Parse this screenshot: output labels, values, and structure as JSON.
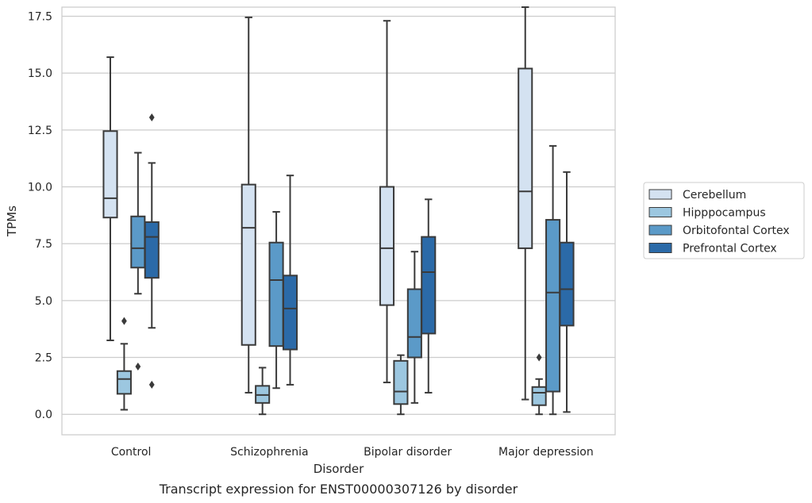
{
  "chart_data": {
    "type": "boxplot",
    "title": "",
    "caption": "Transcript expression for ENST00000307126 by disorder",
    "xlabel": "Disorder",
    "ylabel": "TPMs",
    "ylim": [
      -0.9,
      17.9
    ],
    "yticks": [
      0.0,
      2.5,
      5.0,
      7.5,
      10.0,
      12.5,
      15.0,
      17.5
    ],
    "ytick_labels": [
      "0.0",
      "2.5",
      "5.0",
      "7.5",
      "10.0",
      "12.5",
      "15.0",
      "17.5"
    ],
    "grid": true,
    "legend_position": "right",
    "categories": [
      "Control",
      "Schizophrenia",
      "Bipolar disorder",
      "Major depression"
    ],
    "series": [
      {
        "name": "Cerebellum",
        "color": "#d4e2f1",
        "boxes": [
          {
            "whislo": 3.25,
            "q1": 8.65,
            "med": 9.5,
            "q3": 12.45,
            "whishi": 15.7,
            "fliers": []
          },
          {
            "whislo": 0.95,
            "q1": 3.05,
            "med": 8.2,
            "q3": 10.1,
            "whishi": 17.45,
            "fliers": []
          },
          {
            "whislo": 1.4,
            "q1": 4.8,
            "med": 7.3,
            "q3": 10.0,
            "whishi": 17.3,
            "fliers": []
          },
          {
            "whislo": 0.65,
            "q1": 7.3,
            "med": 9.8,
            "q3": 15.2,
            "whishi": 17.9,
            "fliers": []
          }
        ]
      },
      {
        "name": "Hipppocampus",
        "color": "#9cc7e0",
        "boxes": [
          {
            "whislo": 0.2,
            "q1": 0.9,
            "med": 1.55,
            "q3": 1.9,
            "whishi": 3.1,
            "fliers": [
              4.1
            ]
          },
          {
            "whislo": 0.0,
            "q1": 0.5,
            "med": 0.85,
            "q3": 1.25,
            "whishi": 2.05,
            "fliers": []
          },
          {
            "whislo": 0.0,
            "q1": 0.45,
            "med": 1.0,
            "q3": 2.35,
            "whishi": 2.6,
            "fliers": []
          },
          {
            "whislo": 0.0,
            "q1": 0.4,
            "med": 0.95,
            "q3": 1.2,
            "whishi": 1.55,
            "fliers": [
              2.5
            ]
          }
        ]
      },
      {
        "name": "Orbitofontal Cortex",
        "color": "#5b9ac8",
        "boxes": [
          {
            "whislo": 5.3,
            "q1": 6.45,
            "med": 7.3,
            "q3": 8.7,
            "whishi": 11.5,
            "fliers": [
              2.1
            ]
          },
          {
            "whislo": 1.15,
            "q1": 3.0,
            "med": 5.9,
            "q3": 7.55,
            "whishi": 8.9,
            "fliers": []
          },
          {
            "whislo": 0.5,
            "q1": 2.5,
            "med": 3.4,
            "q3": 5.5,
            "whishi": 7.15,
            "fliers": []
          },
          {
            "whislo": 0.0,
            "q1": 1.0,
            "med": 5.35,
            "q3": 8.55,
            "whishi": 11.8,
            "fliers": []
          }
        ]
      },
      {
        "name": "Prefrontal Cortex",
        "color": "#2b6aa8",
        "boxes": [
          {
            "whislo": 3.8,
            "q1": 6.0,
            "med": 7.8,
            "q3": 8.45,
            "whishi": 11.05,
            "fliers": [
              13.05,
              1.3
            ]
          },
          {
            "whislo": 1.3,
            "q1": 2.85,
            "med": 4.65,
            "q3": 6.1,
            "whishi": 10.5,
            "fliers": []
          },
          {
            "whislo": 0.95,
            "q1": 3.55,
            "med": 6.25,
            "q3": 7.8,
            "whishi": 9.45,
            "fliers": []
          },
          {
            "whislo": 0.1,
            "q1": 3.9,
            "med": 5.5,
            "q3": 7.55,
            "whishi": 10.65,
            "fliers": []
          }
        ]
      }
    ]
  }
}
